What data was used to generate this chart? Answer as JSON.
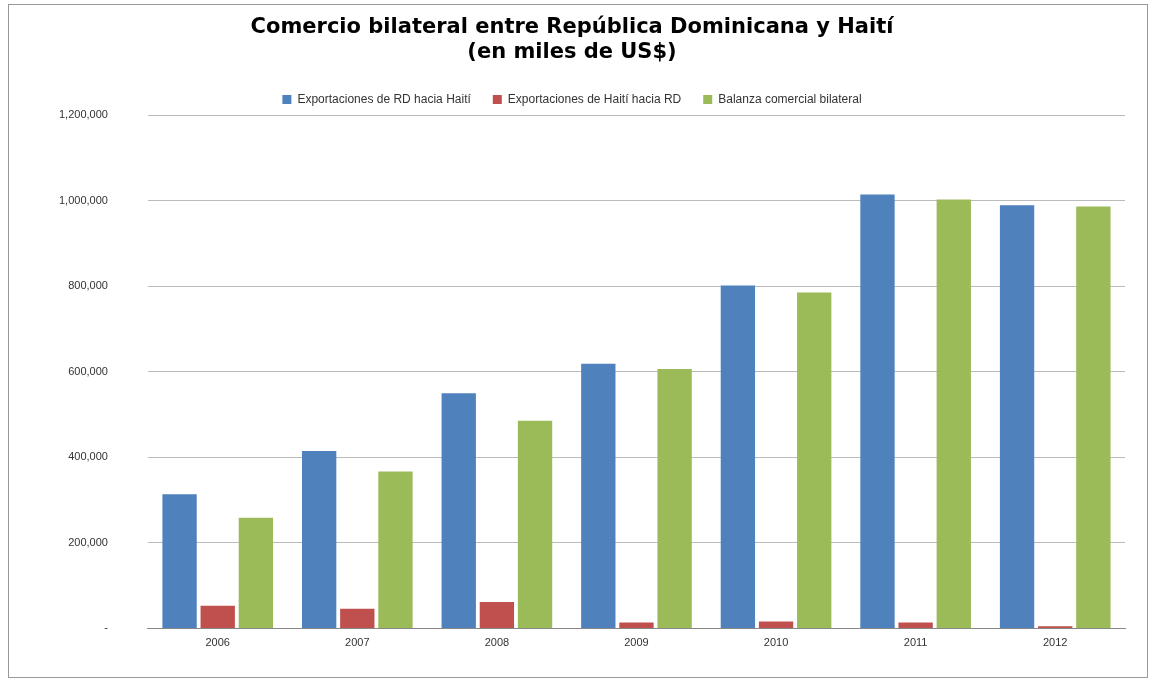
{
  "chart_data": {
    "type": "bar",
    "title": "Comercio bilateral entre República Dominicana y Haití",
    "subtitle": "(en miles de US$)",
    "categories": [
      "2006",
      "2007",
      "2008",
      "2009",
      "2010",
      "2011",
      "2012"
    ],
    "series": [
      {
        "name": "Exportaciones de RD hacia Haití",
        "color": "#4f81bd",
        "values": [
          314000,
          415000,
          550000,
          619000,
          802000,
          1015000,
          990000
        ]
      },
      {
        "name": "Exportaciones de Haití hacia RD",
        "color": "#c0504d",
        "values": [
          53000,
          46000,
          62000,
          14000,
          16000,
          14000,
          5000
        ]
      },
      {
        "name": "Balanza comercial bilateral",
        "color": "#9bbb59",
        "values": [
          259000,
          367000,
          486000,
          607000,
          786000,
          1003000,
          987000
        ]
      }
    ],
    "ylim": [
      0,
      1200000
    ],
    "yticks": [
      {
        "value": 0,
        "label": "-"
      },
      {
        "value": 200000,
        "label": "200,000"
      },
      {
        "value": 400000,
        "label": "400,000"
      },
      {
        "value": 600000,
        "label": "600,000"
      },
      {
        "value": 800000,
        "label": "800,000"
      },
      {
        "value": 1000000,
        "label": "1,000,000"
      },
      {
        "value": 1200000,
        "label": "1,200,000"
      }
    ],
    "grid": "y",
    "legend": "top"
  }
}
